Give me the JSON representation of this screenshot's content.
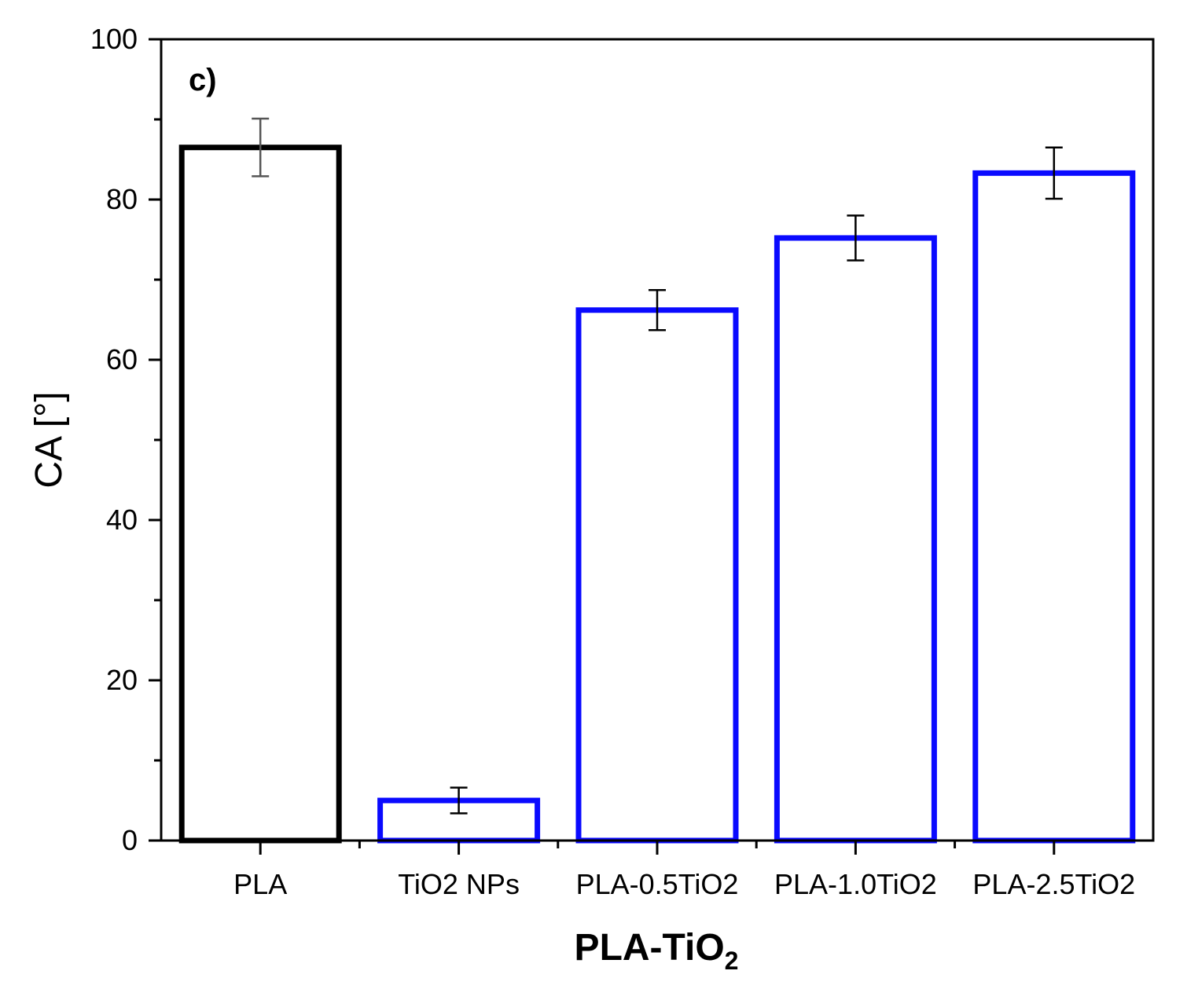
{
  "chart_data": {
    "type": "bar",
    "panel_label": "c)",
    "categories": [
      "PLA",
      "TiO2 NPs",
      "PLA-0.5TiO2",
      "PLA-1.0TiO2",
      "PLA-2.5TiO2"
    ],
    "values": [
      86.5,
      5.0,
      66.2,
      75.2,
      83.3
    ],
    "errors": [
      3.6,
      1.6,
      2.5,
      2.8,
      3.2
    ],
    "bar_colors": [
      "#000000",
      "#0a0aff",
      "#0a0aff",
      "#0a0aff",
      "#0a0aff"
    ],
    "ylabel": "CA [°]",
    "xlabel_main": "PLA-TiO",
    "xlabel_sub": "2",
    "ylim": [
      0,
      100
    ],
    "yticks": [
      0,
      20,
      40,
      60,
      80,
      100
    ],
    "ytick_labels": [
      "0",
      "20",
      "40",
      "60",
      "80",
      "100"
    ]
  }
}
